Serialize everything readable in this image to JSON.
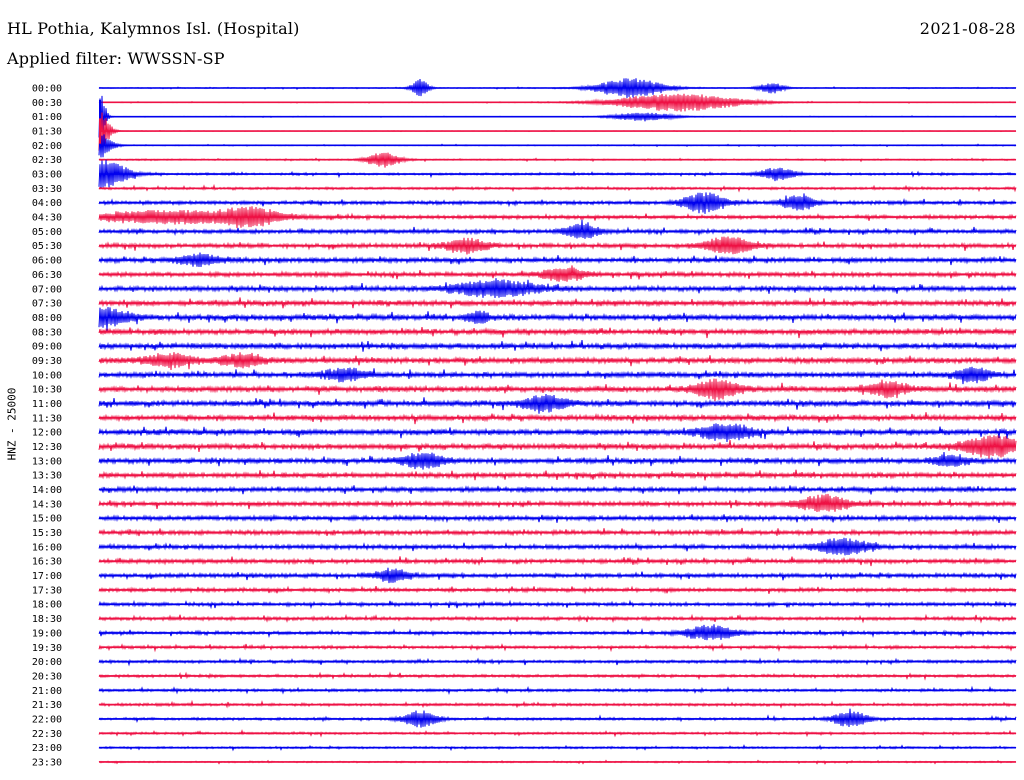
{
  "header": {
    "station": "HL Pothia, Kalymnos Isl. (Hospital)",
    "date": "2021-08-28",
    "filter": "Applied filter: WWSSN-SP"
  },
  "chart_data": {
    "type": "line",
    "title": "HL Pothia, Kalymnos Isl. (Hospital)",
    "subtitle": "Applied filter: WWSSN-SP",
    "ylabel": "HNZ - 25000",
    "row_labels": [
      "00:00",
      "00:30",
      "01:00",
      "01:30",
      "02:00",
      "02:30",
      "03:00",
      "03:30",
      "04:00",
      "04:30",
      "05:00",
      "05:30",
      "06:00",
      "06:30",
      "07:00",
      "07:30",
      "08:00",
      "08:30",
      "09:00",
      "09:30",
      "10:00",
      "10:30",
      "11:00",
      "11:30",
      "12:00",
      "12:30",
      "13:00",
      "13:30",
      "14:00",
      "14:30",
      "15:00",
      "15:30",
      "16:00",
      "16:30",
      "17:00",
      "17:30",
      "18:00",
      "18:30",
      "19:00",
      "19:30",
      "20:00",
      "20:30",
      "21:00",
      "21:30",
      "22:00",
      "22:30",
      "23:00",
      "23:30"
    ],
    "row_duration_minutes": 30,
    "colors": [
      "#0000ee",
      "#ee1144"
    ],
    "noise_level": [
      0.08,
      0.06,
      0.05,
      0.04,
      0.08,
      0.12,
      0.18,
      0.2,
      0.28,
      0.3,
      0.32,
      0.35,
      0.38,
      0.36,
      0.4,
      0.42,
      0.45,
      0.44,
      0.46,
      0.45,
      0.44,
      0.46,
      0.45,
      0.44,
      0.46,
      0.45,
      0.42,
      0.4,
      0.38,
      0.36,
      0.37,
      0.35,
      0.36,
      0.34,
      0.33,
      0.3,
      0.28,
      0.27,
      0.26,
      0.24,
      0.24,
      0.23,
      0.22,
      0.22,
      0.2,
      0.18,
      0.16,
      0.12
    ],
    "events": [
      {
        "row": 0,
        "minute": 10.5,
        "amp": 2.0,
        "dur": 0.4
      },
      {
        "row": 0,
        "minute": 17.4,
        "amp": 2.2,
        "dur": 1.6
      },
      {
        "row": 0,
        "minute": 22.0,
        "amp": 1.2,
        "dur": 0.6
      },
      {
        "row": 1,
        "minute": 18.9,
        "amp": 2.0,
        "dur": 3.0
      },
      {
        "row": 2,
        "minute": 17.8,
        "amp": 1.0,
        "dur": 1.4
      },
      {
        "row": 2,
        "minute": 0.0,
        "amp": 6.0,
        "dur": 0.3
      },
      {
        "row": 3,
        "minute": 0.0,
        "amp": 4.5,
        "dur": 0.5
      },
      {
        "row": 4,
        "minute": 0.0,
        "amp": 3.0,
        "dur": 0.6
      },
      {
        "row": 5,
        "minute": 9.3,
        "amp": 1.6,
        "dur": 0.8
      },
      {
        "row": 6,
        "minute": 0.1,
        "amp": 3.0,
        "dur": 1.2
      },
      {
        "row": 6,
        "minute": 22.2,
        "amp": 1.4,
        "dur": 0.8
      },
      {
        "row": 8,
        "minute": 19.8,
        "amp": 2.2,
        "dur": 1.0
      },
      {
        "row": 8,
        "minute": 22.9,
        "amp": 1.6,
        "dur": 0.8
      },
      {
        "row": 9,
        "minute": 2.5,
        "amp": 1.4,
        "dur": 4.0
      },
      {
        "row": 9,
        "minute": 5.0,
        "amp": 1.6,
        "dur": 1.2
      },
      {
        "row": 10,
        "minute": 15.8,
        "amp": 1.6,
        "dur": 0.8
      },
      {
        "row": 11,
        "minute": 12.0,
        "amp": 1.5,
        "dur": 1.0
      },
      {
        "row": 11,
        "minute": 20.6,
        "amp": 1.8,
        "dur": 1.2
      },
      {
        "row": 12,
        "minute": 3.3,
        "amp": 1.2,
        "dur": 1.0
      },
      {
        "row": 13,
        "minute": 15.2,
        "amp": 1.4,
        "dur": 1.0
      },
      {
        "row": 14,
        "minute": 13.0,
        "amp": 1.8,
        "dur": 2.0
      },
      {
        "row": 16,
        "minute": 0.0,
        "amp": 2.0,
        "dur": 1.4
      },
      {
        "row": 16,
        "minute": 12.4,
        "amp": 1.4,
        "dur": 0.5
      },
      {
        "row": 19,
        "minute": 2.3,
        "amp": 1.4,
        "dur": 1.2
      },
      {
        "row": 19,
        "minute": 4.7,
        "amp": 1.4,
        "dur": 1.0
      },
      {
        "row": 20,
        "minute": 8.0,
        "amp": 1.2,
        "dur": 1.0
      },
      {
        "row": 20,
        "minute": 28.6,
        "amp": 1.6,
        "dur": 0.8
      },
      {
        "row": 21,
        "minute": 20.2,
        "amp": 2.0,
        "dur": 1.0
      },
      {
        "row": 21,
        "minute": 25.8,
        "amp": 1.6,
        "dur": 1.0
      },
      {
        "row": 22,
        "minute": 14.6,
        "amp": 1.8,
        "dur": 1.0
      },
      {
        "row": 24,
        "minute": 20.5,
        "amp": 1.8,
        "dur": 1.2
      },
      {
        "row": 25,
        "minute": 29.2,
        "amp": 2.2,
        "dur": 1.4
      },
      {
        "row": 26,
        "minute": 10.6,
        "amp": 1.6,
        "dur": 1.0
      },
      {
        "row": 26,
        "minute": 27.8,
        "amp": 1.2,
        "dur": 0.8
      },
      {
        "row": 29,
        "minute": 23.7,
        "amp": 1.8,
        "dur": 1.2
      },
      {
        "row": 32,
        "minute": 24.3,
        "amp": 1.8,
        "dur": 1.2
      },
      {
        "row": 34,
        "minute": 9.6,
        "amp": 1.4,
        "dur": 0.8
      },
      {
        "row": 38,
        "minute": 20.0,
        "amp": 1.6,
        "dur": 1.2
      },
      {
        "row": 44,
        "minute": 10.5,
        "amp": 1.8,
        "dur": 0.8
      },
      {
        "row": 44,
        "minute": 24.6,
        "amp": 1.8,
        "dur": 0.8
      }
    ]
  }
}
